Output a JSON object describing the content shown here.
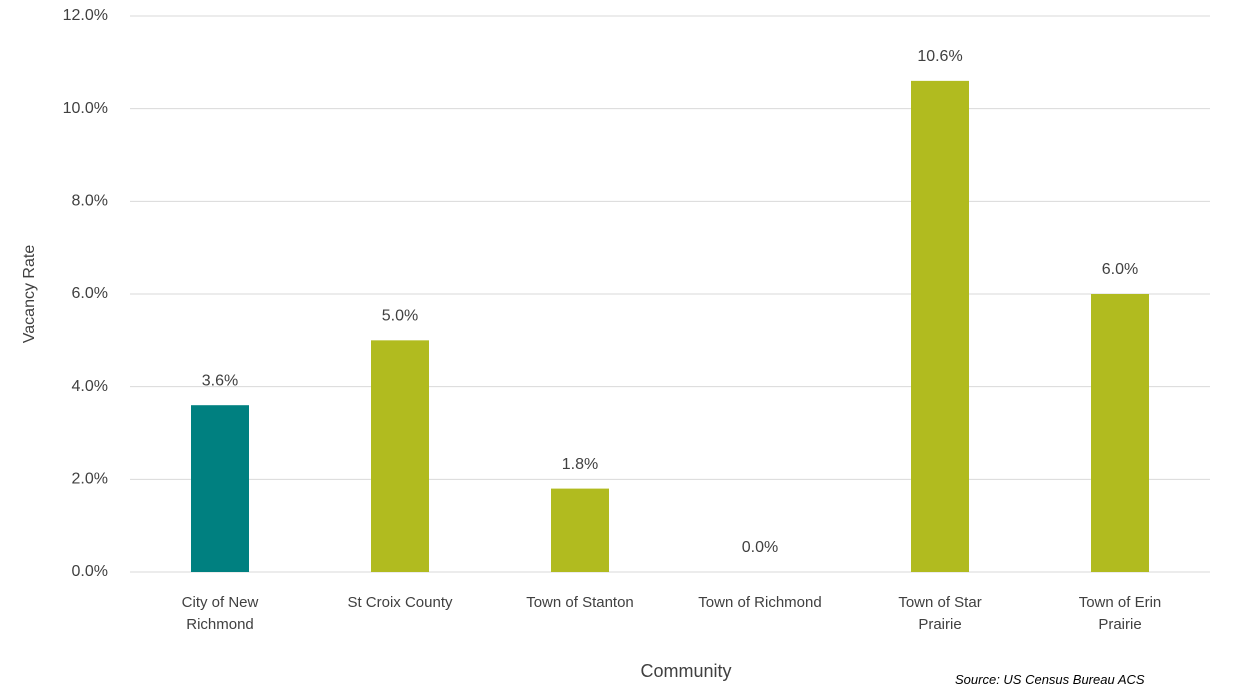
{
  "chart_data": {
    "type": "bar",
    "categories": [
      "City of New Richmond",
      "St Croix County",
      "Town of Stanton",
      "Town of Richmond",
      "Town of Star Prairie",
      "Town of Erin Prairie"
    ],
    "values": [
      3.6,
      5.0,
      1.8,
      0.0,
      10.6,
      6.0
    ],
    "value_labels": [
      "3.6%",
      "5.0%",
      "1.8%",
      "0.0%",
      "10.6%",
      "6.0%"
    ],
    "colors": [
      "#008080",
      "#b1bb1f",
      "#b1bb1f",
      "#b1bb1f",
      "#b1bb1f",
      "#b1bb1f"
    ],
    "x_label": "Community",
    "y_label": "Vacancy Rate",
    "ylim": [
      0,
      12
    ],
    "yticks": [
      {
        "value": 0,
        "label": "0.0%"
      },
      {
        "value": 2,
        "label": "2.0%"
      },
      {
        "value": 4,
        "label": "4.0%"
      },
      {
        "value": 6,
        "label": "6.0%"
      },
      {
        "value": 8,
        "label": "8.0%"
      },
      {
        "value": 10,
        "label": "10.0%"
      },
      {
        "value": 12,
        "label": "12.0%"
      }
    ],
    "grid": true,
    "note": "Source: US Census Bureau ACS"
  }
}
